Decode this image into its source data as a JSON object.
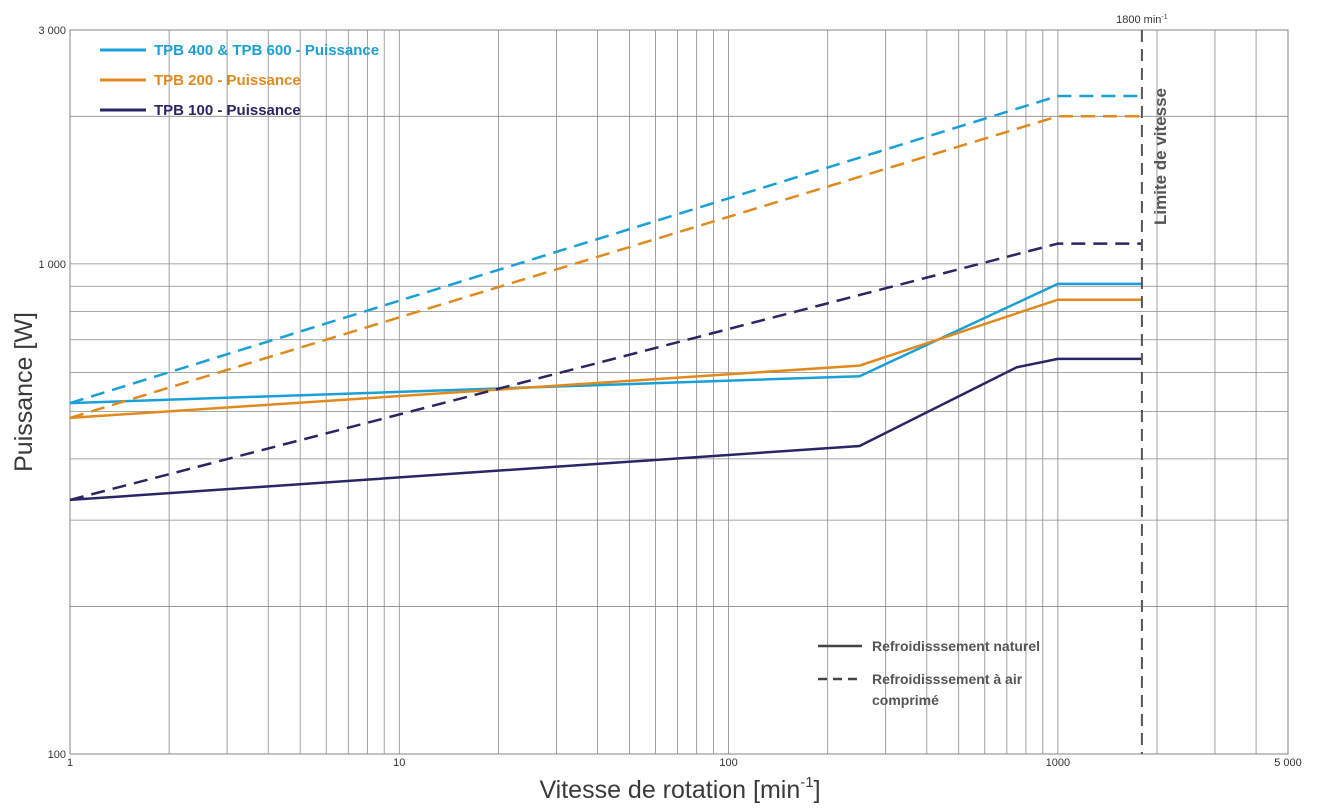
{
  "chart_data": {
    "type": "line",
    "xscale": "log",
    "yscale": "log",
    "xlim": [
      1,
      5000
    ],
    "ylim": [
      100,
      3000
    ],
    "xlabel": "Vitesse de rotation [min",
    "xlabel_sup": "-1",
    "xlabel_close": "]",
    "ylabel": "Puissance [W]",
    "x_ticks": [
      {
        "value": 1,
        "label": "1"
      },
      {
        "value": 10,
        "label": "10"
      },
      {
        "value": 100,
        "label": "100"
      },
      {
        "value": 1000,
        "label": "1000"
      },
      {
        "value": 5000,
        "label": "5 000"
      }
    ],
    "y_ticks": [
      {
        "value": 100,
        "label": "100"
      },
      {
        "value": 1000,
        "label": "1 000"
      },
      {
        "value": 3000,
        "label": "3 000"
      }
    ],
    "x_grid": [
      1,
      2,
      3,
      4,
      5,
      6,
      7,
      8,
      9,
      10,
      20,
      30,
      40,
      50,
      60,
      70,
      80,
      90,
      100,
      200,
      300,
      400,
      500,
      600,
      700,
      800,
      900,
      1000,
      2000,
      3000,
      4000,
      5000
    ],
    "y_grid": [
      100,
      200,
      300,
      400,
      500,
      600,
      700,
      800,
      900,
      1000,
      2000,
      3000
    ],
    "grid": true,
    "speed_limit": {
      "x": 1800,
      "label": "Limite de vitesse",
      "top_label": "1800",
      "top_unit": "min",
      "top_unit_sup": "-1"
    },
    "series": [
      {
        "name": "TPB 400 & TPB 600 - Puissance",
        "color": "#1aa0d8",
        "natural": [
          [
            1,
            520
          ],
          [
            250,
            590
          ],
          [
            1000,
            910
          ],
          [
            1800,
            910
          ]
        ],
        "compressed": [
          [
            1,
            520
          ],
          [
            1000,
            2200
          ],
          [
            1800,
            2200
          ]
        ]
      },
      {
        "name": "TPB 200 - Puissance",
        "color": "#e08a1e",
        "natural": [
          [
            1,
            485
          ],
          [
            250,
            620
          ],
          [
            1000,
            845
          ],
          [
            1800,
            845
          ]
        ],
        "compressed": [
          [
            1,
            485
          ],
          [
            1000,
            2000
          ],
          [
            1800,
            2000
          ]
        ]
      },
      {
        "name": "TPB 100 - Puissance",
        "color": "#2a2666",
        "natural": [
          [
            1,
            330
          ],
          [
            250,
            425
          ],
          [
            750,
            615
          ],
          [
            1000,
            640
          ],
          [
            1800,
            640
          ]
        ],
        "compressed": [
          [
            1,
            330
          ],
          [
            1000,
            1100
          ],
          [
            1800,
            1100
          ]
        ]
      }
    ],
    "legend": [
      "TPB 400 & TPB 600 - Puissance",
      "TPB 200 - Puissance",
      "TPB 100 - Puissance"
    ],
    "legend_position": "top-left",
    "line_styles": {
      "solid": "Refroidisssement naturel",
      "dashed_line1": "Refroidisssement à air",
      "dashed_line2": "comprimé"
    }
  }
}
